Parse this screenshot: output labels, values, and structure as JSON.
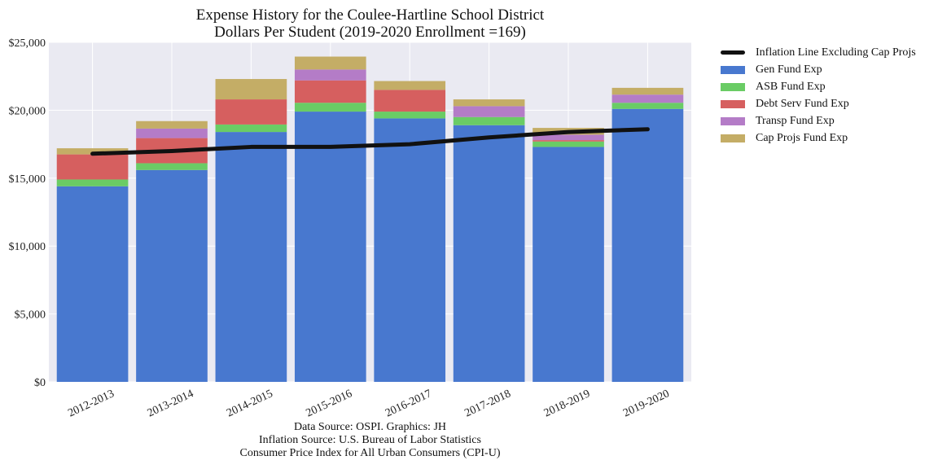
{
  "title_line1": "Expense History for the Coulee-Hartline School District",
  "title_line2": "Dollars Per Student (2019-2020 Enrollment =169)",
  "source_line1": "Data Source: OSPI. Graphics: JH",
  "source_line2": "Inflation Source: U.S. Bureau of Labor Statistics",
  "source_line3": "Consumer Price Index for All Urban Consumers (CPI-U)",
  "legend": [
    {
      "label": "Inflation Line Excluding Cap Projs",
      "color": "#111111",
      "kind": "line"
    },
    {
      "label": "Gen Fund Exp",
      "color": "#4878cf",
      "kind": "bar"
    },
    {
      "label": "ASB Fund Exp",
      "color": "#6acc65",
      "kind": "bar"
    },
    {
      "label": "Debt Serv Fund Exp",
      "color": "#d65f5f",
      "kind": "bar"
    },
    {
      "label": "Transp Fund Exp",
      "color": "#b47cc7",
      "kind": "bar"
    },
    {
      "label": "Cap Projs Fund Exp",
      "color": "#c4ad66",
      "kind": "bar"
    }
  ],
  "chart_data": {
    "type": "bar",
    "stacked": true,
    "categories": [
      "2012-2013",
      "2013-2014",
      "2014-2015",
      "2015-2016",
      "2016-2017",
      "2017-2018",
      "2018-2019",
      "2019-2020"
    ],
    "series": [
      {
        "name": "Gen Fund Exp",
        "color": "#4878cf",
        "values": [
          14400,
          15600,
          18400,
          19900,
          19400,
          18900,
          17300,
          20100
        ]
      },
      {
        "name": "ASB Fund Exp",
        "color": "#6acc65",
        "values": [
          500,
          500,
          550,
          650,
          500,
          600,
          400,
          450
        ]
      },
      {
        "name": "Debt Serv Fund Exp",
        "color": "#d65f5f",
        "values": [
          1850,
          1850,
          1850,
          1650,
          1600,
          0,
          100,
          0
        ]
      },
      {
        "name": "Transp Fund Exp",
        "color": "#b47cc7",
        "values": [
          0,
          700,
          0,
          800,
          0,
          800,
          400,
          600
        ]
      },
      {
        "name": "Cap Projs Fund Exp",
        "color": "#c4ad66",
        "values": [
          450,
          550,
          1500,
          950,
          650,
          500,
          500,
          500
        ]
      }
    ],
    "line": {
      "name": "Inflation Line Excluding Cap Projs",
      "color": "#111111",
      "values": [
        16800,
        17000,
        17300,
        17300,
        17500,
        18000,
        18400,
        18600
      ]
    },
    "ylim": [
      0,
      25000
    ],
    "yticks": [
      0,
      5000,
      10000,
      15000,
      20000,
      25000
    ],
    "ytick_labels": [
      "$0",
      "$5,000",
      "$10,000",
      "$15,000",
      "$20,000",
      "$25,000"
    ],
    "grid": true,
    "legend_position": "outside-right"
  }
}
